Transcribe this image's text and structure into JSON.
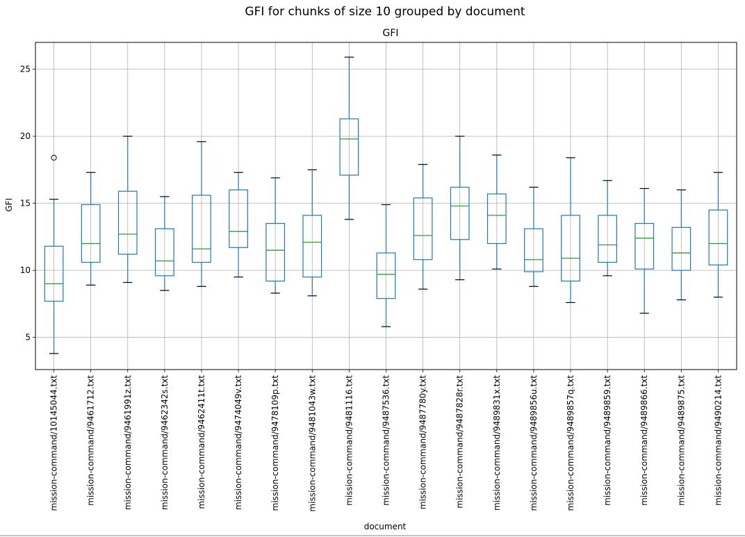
{
  "chart_data": {
    "type": "box",
    "suptitle": "GFI for chunks of size 10 grouped by document",
    "title": "GFI",
    "xlabel": "document",
    "ylabel": "GFI",
    "ylim": [
      2.6,
      27.0
    ],
    "yticks": [
      5,
      10,
      15,
      20,
      25
    ],
    "grid": true,
    "colors": {
      "box": "#1f77b4",
      "median": "#2ca02c",
      "grid": "#b0b0b0"
    },
    "categories": [
      "mission-command/10145044.txt",
      "mission-command/9461712.txt",
      "mission-command/9461991z.txt",
      "mission-command/9462342s.txt",
      "mission-command/9462411t.txt",
      "mission-command/9474049v.txt",
      "mission-command/9478109p.txt",
      "mission-command/9481043w.txt",
      "mission-command/9481116.txt",
      "mission-command/9487536.txt",
      "mission-command/9487780y.txt",
      "mission-command/9487828r.txt",
      "mission-command/9489831x.txt",
      "mission-command/9489856u.txt",
      "mission-command/9489857q.txt",
      "mission-command/9489859.txt",
      "mission-command/9489866.txt",
      "mission-command/9489875.txt",
      "mission-command/9490214.txt"
    ],
    "boxes": [
      {
        "whislo": 3.8,
        "q1": 7.7,
        "med": 9.0,
        "q3": 11.8,
        "whishi": 15.3,
        "fliers": [
          18.4
        ]
      },
      {
        "whislo": 8.9,
        "q1": 10.6,
        "med": 12.0,
        "q3": 14.9,
        "whishi": 17.3,
        "fliers": []
      },
      {
        "whislo": 9.1,
        "q1": 11.2,
        "med": 12.7,
        "q3": 15.9,
        "whishi": 20.0,
        "fliers": []
      },
      {
        "whislo": 8.5,
        "q1": 9.6,
        "med": 10.7,
        "q3": 13.1,
        "whishi": 15.5,
        "fliers": []
      },
      {
        "whislo": 8.8,
        "q1": 10.6,
        "med": 11.6,
        "q3": 15.6,
        "whishi": 19.6,
        "fliers": []
      },
      {
        "whislo": 9.5,
        "q1": 11.7,
        "med": 12.9,
        "q3": 16.0,
        "whishi": 17.3,
        "fliers": []
      },
      {
        "whislo": 8.3,
        "q1": 9.2,
        "med": 11.5,
        "q3": 13.5,
        "whishi": 16.9,
        "fliers": []
      },
      {
        "whislo": 8.1,
        "q1": 9.5,
        "med": 12.1,
        "q3": 14.1,
        "whishi": 17.5,
        "fliers": []
      },
      {
        "whislo": 13.8,
        "q1": 17.1,
        "med": 19.8,
        "q3": 21.3,
        "whishi": 25.9,
        "fliers": []
      },
      {
        "whislo": 5.8,
        "q1": 7.9,
        "med": 9.7,
        "q3": 11.3,
        "whishi": 14.9,
        "fliers": []
      },
      {
        "whislo": 8.6,
        "q1": 10.8,
        "med": 12.6,
        "q3": 15.4,
        "whishi": 17.9,
        "fliers": []
      },
      {
        "whislo": 9.3,
        "q1": 12.3,
        "med": 14.8,
        "q3": 16.2,
        "whishi": 20.0,
        "fliers": []
      },
      {
        "whislo": 10.1,
        "q1": 12.0,
        "med": 14.1,
        "q3": 15.7,
        "whishi": 18.6,
        "fliers": []
      },
      {
        "whislo": 8.8,
        "q1": 9.9,
        "med": 10.8,
        "q3": 13.1,
        "whishi": 16.2,
        "fliers": []
      },
      {
        "whislo": 7.6,
        "q1": 9.2,
        "med": 10.9,
        "q3": 14.1,
        "whishi": 18.4,
        "fliers": []
      },
      {
        "whislo": 9.6,
        "q1": 10.6,
        "med": 11.9,
        "q3": 14.1,
        "whishi": 16.7,
        "fliers": []
      },
      {
        "whislo": 6.8,
        "q1": 10.1,
        "med": 12.4,
        "q3": 13.5,
        "whishi": 16.1,
        "fliers": []
      },
      {
        "whislo": 7.8,
        "q1": 10.0,
        "med": 11.3,
        "q3": 13.2,
        "whishi": 16.0,
        "fliers": []
      },
      {
        "whislo": 8.0,
        "q1": 10.4,
        "med": 12.0,
        "q3": 14.5,
        "whishi": 17.3,
        "fliers": []
      }
    ]
  }
}
